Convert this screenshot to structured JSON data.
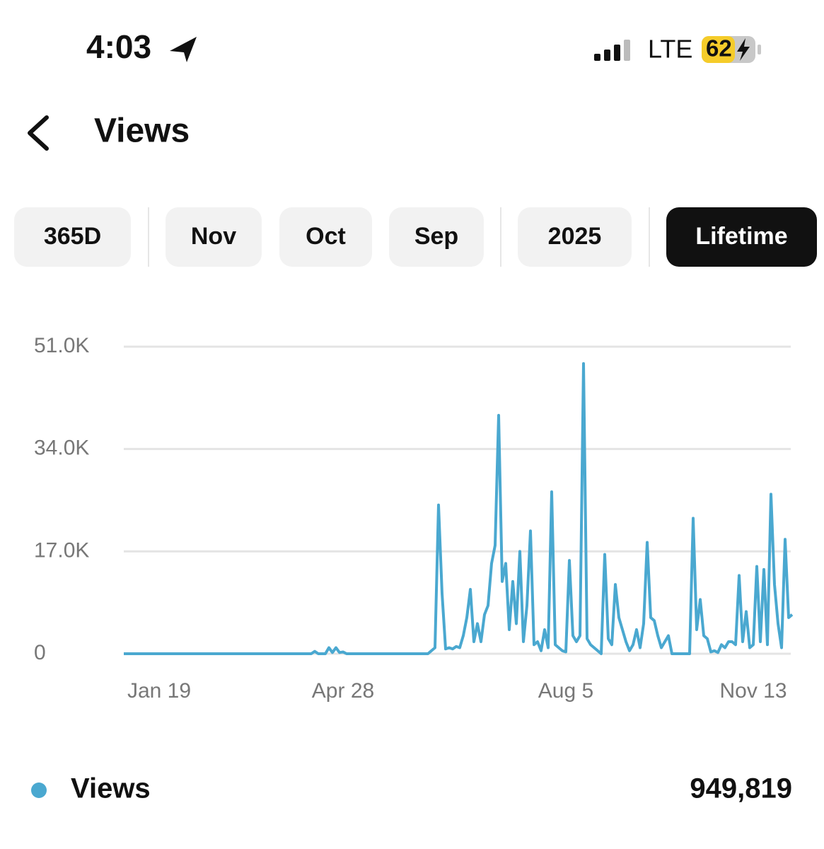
{
  "status": {
    "time": "4:03",
    "network": "LTE",
    "battery": "62"
  },
  "header": {
    "title": "Views"
  },
  "tabs": {
    "items": [
      "365D",
      "Nov",
      "Oct",
      "Sep",
      "2025",
      "Lifetime"
    ],
    "active": 5
  },
  "chart_data": {
    "type": "line",
    "categories": [
      null,
      null,
      null,
      null,
      null,
      null,
      null,
      null,
      null,
      null,
      "Jan 19",
      null,
      null,
      null,
      null,
      null,
      null,
      null,
      null,
      null,
      null,
      null,
      null,
      null,
      null,
      null,
      null,
      null,
      null,
      null,
      null,
      null,
      null,
      null,
      null,
      null,
      null,
      null,
      null,
      null,
      null,
      null,
      null,
      null,
      null,
      null,
      null,
      null,
      null,
      null,
      null,
      null,
      null,
      null,
      null,
      null,
      null,
      null,
      null,
      null,
      null,
      null,
      "Apr 28",
      null,
      null,
      null,
      null,
      null,
      null,
      null,
      null,
      null,
      null,
      null,
      null,
      null,
      null,
      null,
      null,
      null,
      null,
      null,
      null,
      null,
      null,
      null,
      null,
      null,
      null,
      null,
      null,
      null,
      null,
      null,
      null,
      null,
      null,
      null,
      null,
      null,
      null,
      null,
      null,
      null,
      null,
      null,
      null,
      null,
      null,
      null,
      null,
      null,
      null,
      null,
      null,
      null,
      null,
      null,
      null,
      null,
      null,
      null,
      null,
      null,
      null,
      "Aug 5",
      null,
      null,
      null,
      null,
      null,
      null,
      null,
      null,
      null,
      null,
      null,
      null,
      null,
      null,
      null,
      null,
      null,
      null,
      null,
      null,
      null,
      null,
      null,
      null,
      null,
      null,
      null,
      null,
      null,
      null,
      null,
      null,
      null,
      null,
      null,
      null,
      null,
      null,
      null,
      null,
      null,
      null,
      null,
      null,
      null,
      null,
      null,
      null,
      null,
      null,
      null,
      null,
      "Nov 13",
      null,
      null,
      null,
      null,
      null,
      null,
      null,
      null,
      null,
      null,
      null
    ],
    "series": [
      {
        "name": "Views",
        "color": "#4aa8d0",
        "values": [
          0,
          0,
          0,
          0,
          0,
          0,
          0,
          0,
          0,
          0,
          0,
          0,
          0,
          0,
          0,
          0,
          0,
          0,
          0,
          0,
          0,
          0,
          0,
          0,
          0,
          0,
          0,
          0,
          0,
          0,
          0,
          0,
          0,
          0,
          0,
          0,
          0,
          0,
          0,
          0,
          0,
          0,
          0,
          0,
          0,
          0,
          0,
          0,
          0,
          0,
          0,
          0,
          0,
          0,
          400,
          0,
          0,
          0,
          1000,
          200,
          1000,
          200,
          300,
          0,
          0,
          0,
          0,
          0,
          0,
          0,
          0,
          0,
          0,
          0,
          0,
          0,
          0,
          0,
          0,
          0,
          0,
          0,
          0,
          0,
          0,
          0,
          0,
          500,
          1000,
          24700,
          10000,
          800,
          1000,
          800,
          1200,
          1000,
          3000,
          6000,
          10700,
          2000,
          5000,
          2000,
          6500,
          8000,
          15000,
          18000,
          39600,
          12000,
          15000,
          4000,
          12000,
          5000,
          17000,
          2000,
          8000,
          20400,
          1500,
          2000,
          500,
          4000,
          1000,
          26900,
          1500,
          1000,
          500,
          300,
          15500,
          3000,
          2000,
          3000,
          48200,
          2500,
          1500,
          1000,
          500,
          0,
          16500,
          2500,
          1500,
          11500,
          6000,
          4000,
          2000,
          500,
          1500,
          4000,
          1000,
          5000,
          18500,
          6000,
          5500,
          3000,
          1000,
          2000,
          3000,
          0,
          0,
          0,
          0,
          0,
          0,
          22500,
          4000,
          9000,
          3000,
          2500,
          300,
          500,
          200,
          1500,
          1000,
          2000,
          2000,
          1500,
          13000,
          2000,
          7000,
          1000,
          1500,
          14500,
          2000,
          14000,
          1500,
          26500,
          11500,
          5000,
          1000,
          19000,
          6000,
          6500
        ]
      }
    ],
    "ylim": [
      0,
      51000
    ],
    "yticks": [
      0,
      {
        "value": 17000,
        "label": "17.0K"
      },
      {
        "value": 34000,
        "label": "34.0K"
      },
      {
        "value": 51000,
        "label": "51.0K"
      }
    ],
    "grid": true
  },
  "summary": {
    "total": "949,819"
  }
}
